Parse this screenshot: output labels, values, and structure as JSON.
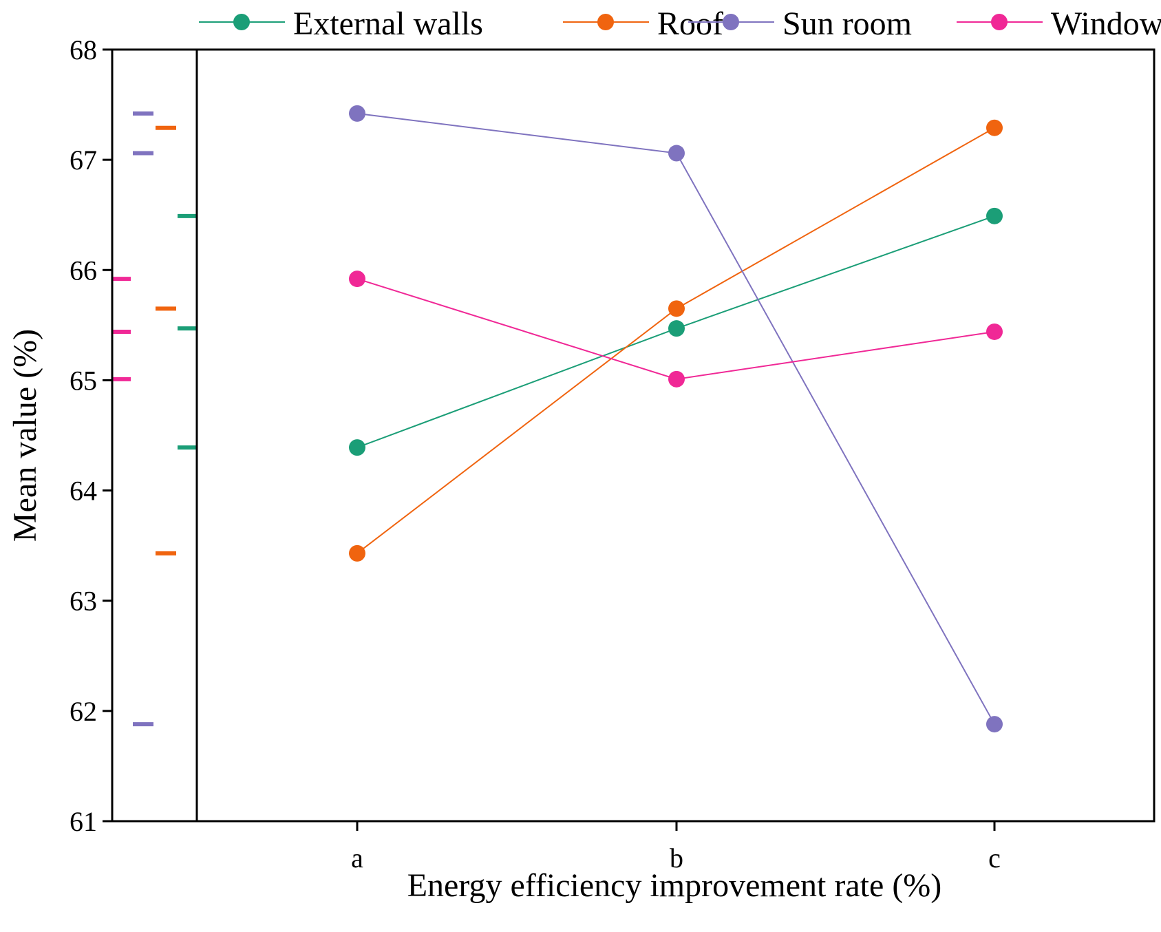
{
  "chart_data": {
    "type": "line",
    "title": "",
    "xlabel": "Energy efficiency improvement rate (%)",
    "ylabel": "Mean value (%)",
    "categories": [
      "a",
      "b",
      "c"
    ],
    "ylim": [
      61,
      68
    ],
    "yticks": [
      "61",
      "62",
      "63",
      "64",
      "65",
      "66",
      "67",
      "68"
    ],
    "grid": false,
    "legend_position": "top",
    "series": [
      {
        "name": "External walls",
        "color": "#1b9e77",
        "values": [
          64.39,
          65.47,
          66.49
        ]
      },
      {
        "name": "Roof",
        "color": "#f0640f",
        "values": [
          63.43,
          65.65,
          67.29
        ]
      },
      {
        "name": "Sun room",
        "color": "#7f73bf",
        "values": [
          67.42,
          67.06,
          61.88
        ]
      },
      {
        "name": "Windows",
        "color": "#f02896",
        "values": [
          65.92,
          65.01,
          65.44
        ]
      }
    ]
  }
}
